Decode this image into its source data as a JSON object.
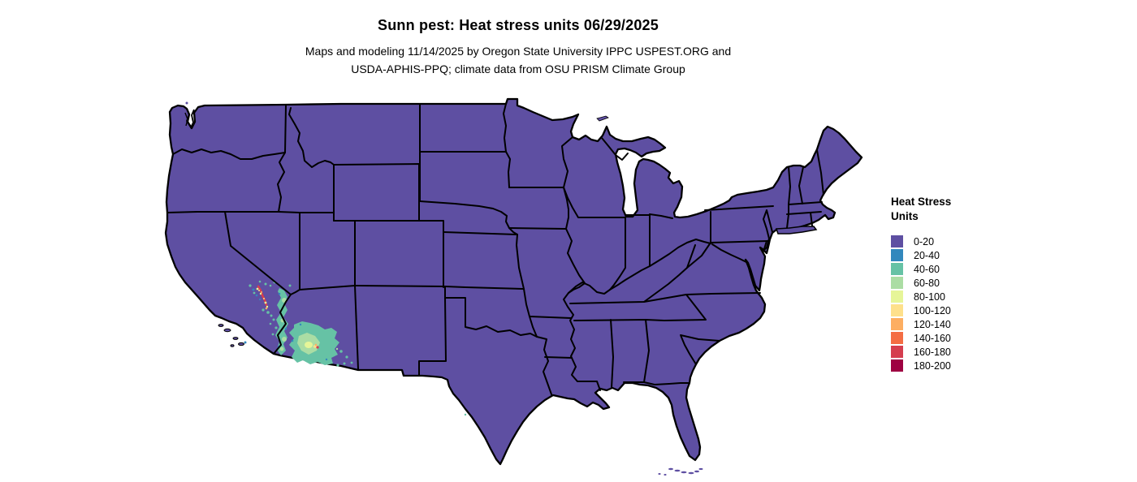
{
  "header": {
    "title": "Sunn pest: Heat stress units 06/29/2025",
    "subtitle_line1": "Maps and modeling 11/14/2025 by Oregon State University IPPC USPEST.ORG and",
    "subtitle_line2": "USDA-APHIS-PPQ; climate data from OSU PRISM Climate Group"
  },
  "map": {
    "region": "continental-united-states",
    "land_fill_color": "#5e4fa2",
    "border_color": "#000000",
    "background_color": "#ffffff",
    "hotspots": [
      {
        "area": "southern-california-imperial-valley",
        "range": "20-200"
      },
      {
        "area": "colorado-river-corridor",
        "range": "20-80"
      },
      {
        "area": "southwestern-arizona",
        "range": "20-160"
      }
    ]
  },
  "legend": {
    "title_line1": "Heat Stress",
    "title_line2": "Units",
    "items": [
      {
        "label": "0-20",
        "color": "#5e4fa2"
      },
      {
        "label": "20-40",
        "color": "#3288bd"
      },
      {
        "label": "40-60",
        "color": "#66c2a5"
      },
      {
        "label": "60-80",
        "color": "#abdda4"
      },
      {
        "label": "80-100",
        "color": "#e6f598"
      },
      {
        "label": "100-120",
        "color": "#fee08b"
      },
      {
        "label": "120-140",
        "color": "#fdae61"
      },
      {
        "label": "140-160",
        "color": "#f46d43"
      },
      {
        "label": "160-180",
        "color": "#d53e4f"
      },
      {
        "label": "180-200",
        "color": "#9e0142"
      }
    ]
  }
}
